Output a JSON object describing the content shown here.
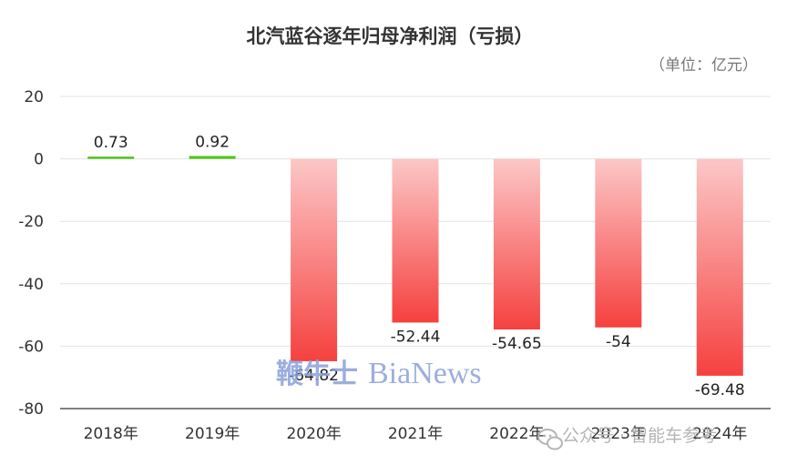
{
  "chart_data": {
    "type": "bar",
    "title": "北汽蓝谷逐年归母净利润（亏损）",
    "unit_label": "（单位：亿元）",
    "categories": [
      "2018年",
      "2019年",
      "2020年",
      "2021年",
      "2022年",
      "2023年",
      "2024年"
    ],
    "values": [
      0.73,
      0.92,
      -64.82,
      -52.44,
      -54.65,
      -54,
      -69.48
    ],
    "value_labels": [
      "0.73",
      "0.92",
      "-64.82",
      "-52.44",
      "-54.65",
      "-54",
      "-69.48"
    ],
    "ylim": [
      -80,
      20
    ],
    "yticks": [
      "20",
      "0",
      "-20",
      "-40",
      "-60",
      "-80"
    ],
    "grid": true,
    "colors": {
      "positive": "#52c41a",
      "negative_top": "#fcc7c7",
      "negative_bottom": "#f5413f",
      "grid": "#e3e3e3",
      "axis": "#333333"
    }
  },
  "watermarks": {
    "publisher_cn": "鞭牛士",
    "publisher_en": "BiaNews",
    "wechat_icon": "wechat-icon",
    "wechat_text": "公众号 · 智能车参考"
  }
}
